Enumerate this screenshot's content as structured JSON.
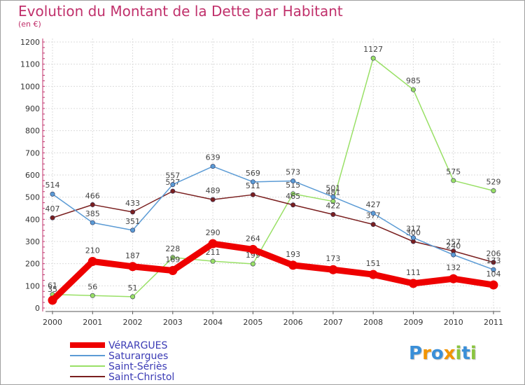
{
  "chart_data": {
    "type": "line",
    "title": "Evolution du Montant de la Dette par Habitant",
    "subtitle": "(en €)",
    "x": [
      2000,
      2001,
      2002,
      2003,
      2004,
      2005,
      2006,
      2007,
      2008,
      2009,
      2010,
      2011
    ],
    "y_ticks": [
      0,
      100,
      200,
      300,
      400,
      500,
      600,
      700,
      800,
      900,
      1000,
      1100,
      1200
    ],
    "ylim": [
      0,
      1200
    ],
    "grid": true,
    "legend_position": "bottom-left",
    "series": [
      {
        "name": "VéRARGUES",
        "color": "#ee0000",
        "values": [
          35,
          210,
          187,
          169,
          290,
          264,
          193,
          173,
          151,
          111,
          132,
          104
        ]
      },
      {
        "name": "Saturargues",
        "color": "#5b9bd5",
        "values": [
          514,
          385,
          351,
          557,
          639,
          569,
          573,
          501,
          427,
          317,
          240,
          173
        ]
      },
      {
        "name": "Saint-Sériès",
        "color": "#99e066",
        "values": [
          61,
          56,
          51,
          228,
          211,
          199,
          515,
          481,
          1127,
          985,
          575,
          529
        ]
      },
      {
        "name": "Saint-Christol",
        "color": "#7a1f1f",
        "values": [
          407,
          466,
          433,
          527,
          489,
          511,
          465,
          422,
          377,
          300,
          257,
          206
        ]
      }
    ]
  },
  "logo": {
    "letters": [
      "P",
      "r",
      "o",
      "x",
      "i",
      "t",
      "i"
    ],
    "colors": [
      "#3a8fd8",
      "#f29400",
      "#3a8fd8",
      "#f29400",
      "#8bc53f",
      "#3a8fd8",
      "#8bc53f"
    ]
  }
}
